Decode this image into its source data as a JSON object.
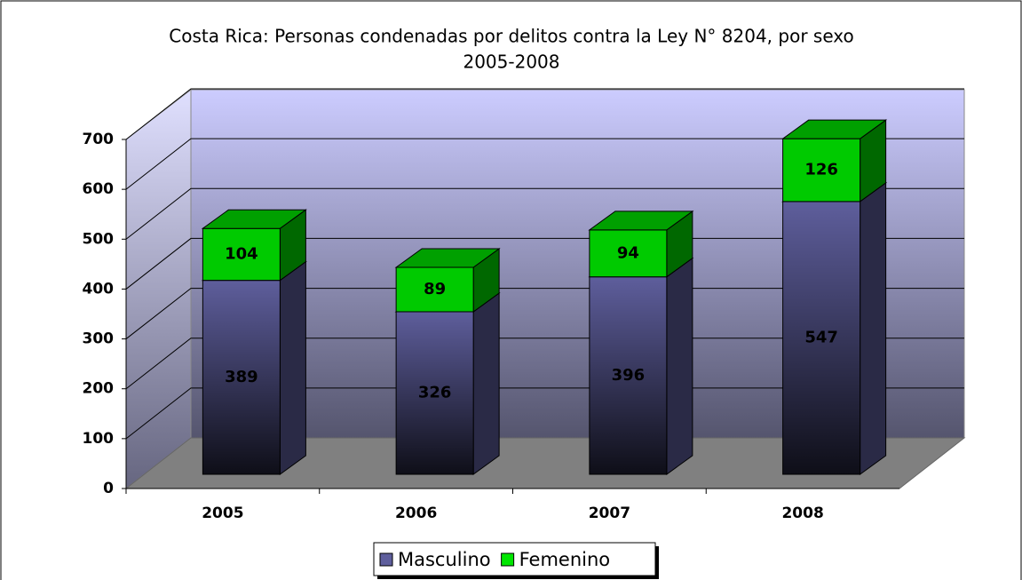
{
  "chart_data": {
    "type": "bar3d_stacked",
    "title": "Costa Rica: Personas condenadas por delitos contra la Ley N° 8204, por sexo",
    "subtitle": "2005-2008",
    "categories": [
      "2005",
      "2006",
      "2007",
      "2008"
    ],
    "series": [
      {
        "name": "Masculino",
        "color": "#5e5e9c",
        "values": [
          389,
          326,
          396,
          547
        ]
      },
      {
        "name": "Femenino",
        "color": "#00e600",
        "values": [
          104,
          89,
          94,
          126
        ]
      }
    ],
    "ylim": [
      0,
      700
    ],
    "yticks": [
      0,
      100,
      200,
      300,
      400,
      500,
      600,
      700
    ],
    "grid": true
  }
}
